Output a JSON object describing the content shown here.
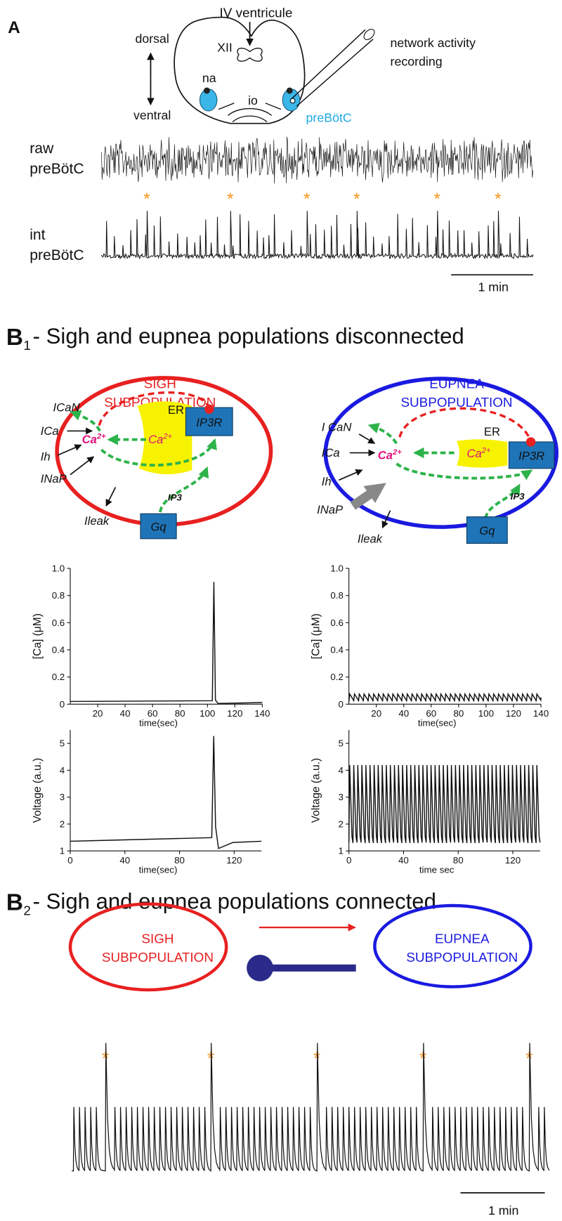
{
  "figure": {
    "A": {
      "label": "A",
      "ventricle": "IV ventricule",
      "xii": "XII",
      "dorsal": "dorsal",
      "ventral": "ventral",
      "na": "na",
      "io": "io",
      "site": "preBötC",
      "recording": [
        "network activity",
        "recording"
      ],
      "raw": [
        "raw",
        "preBötC"
      ],
      "int": [
        "int",
        "preBötC"
      ],
      "sigh_marker": "*",
      "scale": "1 min"
    },
    "B1": {
      "label": "B",
      "sub": "1",
      "title": "- Sigh and eupnea populations disconnected",
      "sigh": {
        "title": [
          "SIGH",
          "SUBPOPULATION"
        ],
        "currents": [
          "ICaN",
          "ICa",
          "Ih",
          "INaP",
          "Ileak"
        ],
        "er": "ER",
        "ca": "Ca",
        "ca_sup": "2+",
        "ip3r": "IP3R",
        "ip3": "IP3",
        "gq": "Gq"
      },
      "eupnea": {
        "title": [
          "EUPNEA",
          "SUBPOPULATION"
        ],
        "currents": [
          "I CaN",
          "ICa",
          "Ih",
          "INaP",
          "Ileak"
        ],
        "er": "ER",
        "ca": "Ca",
        "ca_sup": "2+",
        "ip3r": "IP3R",
        "ip3": "IP3",
        "gq": "Gq"
      }
    },
    "B2": {
      "label": "B",
      "sub": "2",
      "title": "- Sigh and eupnea populations connected",
      "sigh": [
        "SIGH",
        "SUBPOPULATION"
      ],
      "eupnea": [
        "EUPNEA",
        "SUBPOPULATION"
      ],
      "sigh_marker": "*",
      "scale": "1 min"
    }
  },
  "chart_data": [
    {
      "type": "line",
      "ylabel": "[Ca] (μM)",
      "xlabel": "time(sec)",
      "xlim": [
        0,
        140
      ],
      "ylim": [
        0,
        1
      ],
      "xticks": [
        20,
        40,
        60,
        80,
        100,
        120,
        140
      ],
      "yticks": [
        0,
        0.2,
        0.4,
        0.6,
        0.8,
        {
          "value": 1,
          "label": "1.0"
        }
      ]
    },
    {
      "type": "line",
      "ylabel": "[Ca] (μM)",
      "xlabel": "time(sec)",
      "xlim": [
        0,
        140
      ],
      "ylim": [
        0,
        1
      ],
      "xticks": [
        20,
        40,
        60,
        80,
        100,
        120,
        140
      ],
      "yticks": [
        0,
        0.2,
        0.4,
        0.6,
        0.8,
        {
          "value": 1,
          "label": "1.0"
        }
      ]
    },
    {
      "type": "line",
      "ylabel": "Voltage (a.u.)",
      "xlabel": "time(sec)",
      "xlim": [
        0,
        140
      ],
      "ylim": [
        1,
        5.5
      ],
      "xticks": [
        0,
        40,
        80,
        120
      ],
      "yticks": [
        1,
        2,
        3,
        4,
        5
      ]
    },
    {
      "type": "line",
      "ylabel": "Voltage (a.u.)",
      "xlabel": "time sec",
      "xlim": [
        0,
        140
      ],
      "ylim": [
        1,
        5.5
      ],
      "xticks": [
        0,
        40,
        80,
        120
      ],
      "yticks": [
        1,
        2,
        3,
        4,
        5
      ]
    }
  ]
}
